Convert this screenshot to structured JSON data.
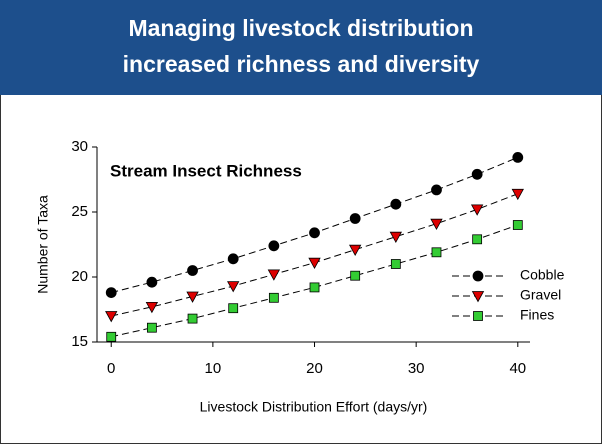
{
  "header": {
    "title_lines": [
      "Managing livestock distribution",
      "increased richness and diversity"
    ]
  },
  "chart_data": {
    "type": "line",
    "title": "Stream Insect Richness",
    "x_label": "Livestock Distribution Effort (days/yr)",
    "y_label": "Number of Taxa",
    "x": [
      0,
      4,
      8,
      12,
      16,
      20,
      24,
      28,
      32,
      36,
      40
    ],
    "series": [
      {
        "name": "Cobble",
        "color": "#000000",
        "marker": "circle",
        "values": [
          18.8,
          19.6,
          20.5,
          21.4,
          22.4,
          23.4,
          24.5,
          25.6,
          26.7,
          27.9,
          29.2
        ]
      },
      {
        "name": "Gravel",
        "color": "#dd0000",
        "marker": "triangle",
        "values": [
          17.0,
          17.7,
          18.5,
          19.3,
          20.2,
          21.1,
          22.1,
          23.1,
          24.1,
          25.2,
          26.4
        ]
      },
      {
        "name": "Fines",
        "color": "#33cc33",
        "marker": "square",
        "values": [
          15.4,
          16.1,
          16.8,
          17.6,
          18.4,
          19.2,
          20.1,
          21.0,
          21.9,
          22.9,
          24.0
        ]
      }
    ],
    "xlim": [
      -1.4,
      41.2
    ],
    "xticks": [
      0,
      10,
      20,
      30,
      40
    ],
    "ylim": [
      15,
      30
    ],
    "yticks": [
      15,
      20,
      25,
      30
    ],
    "legend": "lower right"
  }
}
